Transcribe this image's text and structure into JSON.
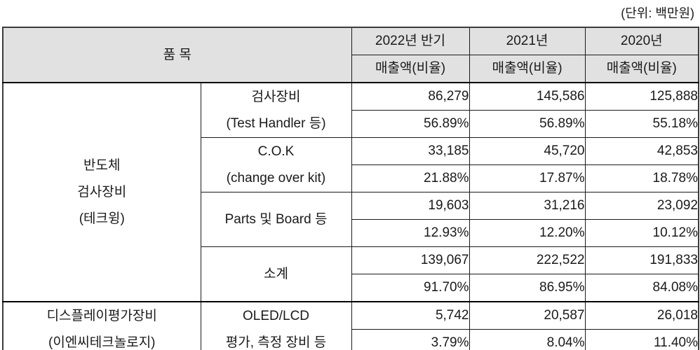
{
  "unit_note": "(단위: 백만원)",
  "colors": {
    "header_bg": "#e1e1e1",
    "border": "#1a1a1a",
    "text": "#1a1a1a",
    "background": "#ffffff"
  },
  "table": {
    "item_header": "품    목",
    "periods": [
      "2022년 반기",
      "2021년",
      "2020년"
    ],
    "measure_header": "매출액(비율)",
    "sections": [
      {
        "group_lines": [
          "반도체",
          "검사장비",
          "(테크윙)"
        ],
        "rows": [
          {
            "name_lines": [
              "검사장비",
              "(Test Handler 등)"
            ],
            "amounts": [
              "86,279",
              "145,586",
              "125,888"
            ],
            "ratios": [
              "56.89%",
              "56.89%",
              "55.18%"
            ]
          },
          {
            "name_lines": [
              "C.O.K",
              "(change over kit)"
            ],
            "amounts": [
              "33,185",
              "45,720",
              "42,853"
            ],
            "ratios": [
              "21.88%",
              "17.87%",
              "18.78%"
            ]
          },
          {
            "name_lines": [
              "Parts 및 Board 등"
            ],
            "amounts": [
              "19,603",
              "31,216",
              "23,092"
            ],
            "ratios": [
              "12.93%",
              "12.20%",
              "10.12%"
            ]
          },
          {
            "name_lines": [
              "소계"
            ],
            "amounts": [
              "139,067",
              "222,522",
              "191,833"
            ],
            "ratios": [
              "91.70%",
              "86.95%",
              "84.08%"
            ]
          }
        ]
      },
      {
        "group_lines": [
          "디스플레이평가장비",
          "(이엔씨테크놀로지)"
        ],
        "rows": [
          {
            "name_lines": [
              "OLED/LCD",
              "평가, 측정 장비 등"
            ],
            "amounts": [
              "5,742",
              "20,587",
              "26,018"
            ],
            "ratios": [
              "3.79%",
              "8.04%",
              "11.40%"
            ]
          }
        ]
      }
    ]
  }
}
